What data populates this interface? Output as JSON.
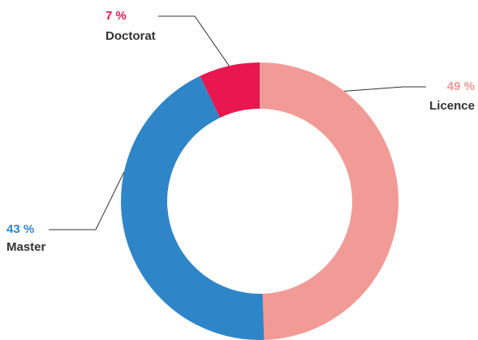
{
  "chart_data": {
    "type": "pie",
    "donut": true,
    "categories": [
      "Licence",
      "Master",
      "Doctorat"
    ],
    "values": [
      49,
      43,
      7
    ],
    "value_labels": [
      "49 %",
      "43 %",
      "7 %"
    ],
    "colors": [
      "#f29a96",
      "#2e86c8",
      "#e8174f"
    ]
  }
}
